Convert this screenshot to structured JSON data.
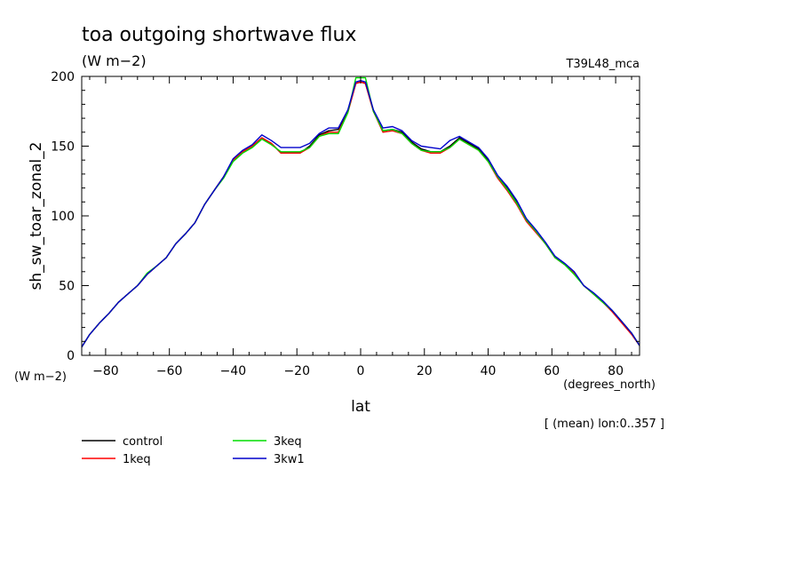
{
  "chart_data": {
    "type": "line",
    "title": "toa outgoing shortwave flux",
    "subtitle": "(W m−2)",
    "top_right_label": "T39L48_mca",
    "xlabel": "lat",
    "x_units": "(degrees_north)",
    "ylabel": "sh_sw_toar_zonal_2",
    "y_units": "(W m−2)",
    "note": "[ (mean) lon:0..357 ]",
    "xlim": [
      -87.5,
      87.5
    ],
    "ylim": [
      0,
      200
    ],
    "x_ticks": [
      -80,
      -60,
      -40,
      -20,
      0,
      20,
      40,
      60,
      80
    ],
    "x_tick_labels": [
      "−80",
      "−60",
      "−40",
      "−20",
      "0",
      "20",
      "40",
      "60",
      "80"
    ],
    "y_ticks": [
      0,
      50,
      100,
      150,
      200
    ],
    "y_tick_labels": [
      "0",
      "50",
      "100",
      "150",
      "200"
    ],
    "grid": false,
    "legend_position": "bottom-left",
    "x": [
      -87.5,
      -85,
      -82,
      -79,
      -76,
      -73,
      -70,
      -67,
      -64,
      -61,
      -58,
      -55,
      -52,
      -49,
      -46,
      -43,
      -40,
      -37,
      -34,
      -31,
      -28,
      -25,
      -22,
      -19,
      -16,
      -13,
      -10,
      -7,
      -4,
      -1.5,
      0,
      1.5,
      4,
      7,
      10,
      13,
      16,
      19,
      22,
      25,
      28,
      31,
      34,
      37,
      40,
      43,
      46,
      49,
      52,
      55,
      58,
      61,
      64,
      67,
      70,
      73,
      76,
      79,
      82,
      85,
      87.5
    ],
    "series": [
      {
        "name": "control",
        "color": "#000000",
        "values": [
          6,
          15,
          23,
          30,
          38,
          44,
          50,
          58,
          64,
          70,
          80,
          87,
          95,
          108,
          118,
          128,
          140,
          146,
          150,
          156,
          152,
          145,
          145,
          145,
          150,
          158,
          161,
          162,
          175,
          195,
          196,
          195,
          175,
          161,
          162,
          160,
          153,
          148,
          146,
          146,
          150,
          156,
          152,
          148,
          140,
          128,
          120,
          110,
          97,
          89,
          80,
          70,
          65,
          59,
          50,
          44,
          38,
          32,
          24,
          16,
          7
        ]
      },
      {
        "name": "1keq",
        "color": "#ff0000",
        "values": [
          6,
          15,
          23,
          30,
          38,
          44,
          50,
          58,
          64,
          70,
          80,
          87,
          95,
          108,
          118,
          128,
          140,
          146,
          150,
          156,
          152,
          145,
          145,
          145,
          149,
          157,
          160,
          160,
          174,
          195,
          196,
          195,
          175,
          160,
          161,
          159,
          152,
          147,
          145,
          145,
          149,
          155,
          151,
          147,
          139,
          127,
          118,
          108,
          96,
          88,
          80,
          70,
          65,
          59,
          50,
          44,
          38,
          31,
          23,
          15,
          7
        ]
      },
      {
        "name": "3keq",
        "color": "#00dd00",
        "values": [
          6,
          15,
          23,
          30,
          38,
          44,
          50,
          59,
          64,
          70,
          80,
          87,
          95,
          108,
          118,
          127,
          139,
          145,
          149,
          155,
          151,
          146,
          146,
          146,
          149,
          157,
          159,
          159,
          174,
          199,
          199,
          199,
          175,
          161,
          162,
          159,
          152,
          147,
          146,
          146,
          149,
          155,
          151,
          147,
          139,
          128,
          119,
          109,
          97,
          89,
          80,
          70,
          65,
          58,
          50,
          44,
          38,
          32,
          24,
          16,
          7
        ]
      },
      {
        "name": "3kw1",
        "color": "#0000cc",
        "values": [
          6,
          15,
          23,
          30,
          38,
          44,
          50,
          58,
          64,
          70,
          80,
          87,
          95,
          108,
          118,
          128,
          141,
          147,
          151,
          158,
          154,
          149,
          149,
          149,
          152,
          159,
          163,
          163,
          176,
          196,
          197,
          196,
          176,
          163,
          164,
          161,
          154,
          150,
          149,
          148,
          154,
          157,
          153,
          149,
          141,
          129,
          121,
          111,
          98,
          90,
          81,
          71,
          66,
          60,
          50,
          45,
          39,
          32,
          24,
          16,
          7
        ]
      }
    ]
  }
}
